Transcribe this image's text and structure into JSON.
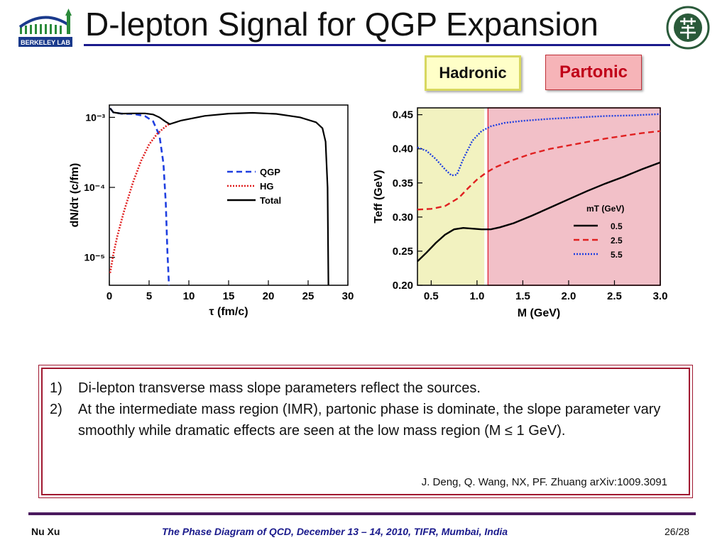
{
  "header": {
    "title": "D-lepton Signal for QGP Expansion",
    "left_logo_text": "BERKELEY LAB",
    "right_logo": "university-seal"
  },
  "tags": {
    "hadronic": "Hadronic",
    "partonic": "Partonic"
  },
  "colors": {
    "qgp": "#1f3fe0",
    "hg": "#e02020",
    "total": "#000000",
    "hadronic_bg": "#f2f2c0",
    "partonic_bg": "#f2c0c8",
    "accent": "#1a1a8c",
    "box_border": "#a01830"
  },
  "chart_data": [
    {
      "type": "line",
      "xlabel": "τ (fm/c)",
      "ylabel": "dN/dτ (c/fm)",
      "y_scale": "log",
      "xlim": [
        0,
        30
      ],
      "ylim": [
        4e-06,
        0.0015
      ],
      "x_ticks": [
        "0",
        "5",
        "10",
        "15",
        "20",
        "25",
        "30"
      ],
      "y_ticks": [
        "10⁻³",
        "10⁻⁴",
        "10⁻⁵"
      ],
      "legend": [
        "QGP",
        "HG",
        "Total"
      ],
      "legend_position": "center-right",
      "series": [
        {
          "name": "QGP",
          "x": [
            0.1,
            0.5,
            1.5,
            3,
            4.5,
            5.5,
            6.3,
            6.8,
            7.1,
            7.3,
            7.5
          ],
          "y": [
            0.00135,
            0.00118,
            0.00113,
            0.00112,
            0.00104,
            0.00088,
            0.00055,
            0.00022,
            6e-05,
            1.2e-05,
            4e-06
          ]
        },
        {
          "name": "HG",
          "x": [
            0.1,
            0.5,
            1.0,
            1.8,
            3.0,
            4.0,
            5.0,
            6.0,
            7.0,
            7.5
          ],
          "y": [
            6e-06,
            1.1e-05,
            2e-05,
            4.4e-05,
            0.00012,
            0.00024,
            0.00041,
            0.00058,
            0.00073,
            0.0008
          ]
        },
        {
          "name": "Total",
          "x": [
            0.1,
            0.5,
            1.5,
            3,
            4.5,
            5.5,
            6.3,
            7.0,
            7.6,
            9,
            12,
            15,
            18,
            21,
            24,
            26,
            26.8,
            27.2,
            27.45,
            27.55
          ],
          "y": [
            0.00135,
            0.00118,
            0.00113,
            0.00114,
            0.00114,
            0.0011,
            0.001,
            0.00088,
            0.0008,
            0.0009,
            0.00105,
            0.00113,
            0.00116,
            0.00112,
            0.001,
            0.00085,
            0.0007,
            0.00045,
            0.0001,
            4e-06
          ]
        }
      ]
    },
    {
      "type": "line",
      "xlabel": "M (GeV)",
      "ylabel": "Teff (GeV)",
      "xlim": [
        0.35,
        3.0
      ],
      "ylim": [
        0.2,
        0.46
      ],
      "x_ticks": [
        "0.5",
        "1.0",
        "1.5",
        "2.0",
        "2.5",
        "3.0"
      ],
      "y_ticks": [
        "0.20",
        "0.25",
        "0.30",
        "0.35",
        "0.40",
        "0.45"
      ],
      "legend_title": "mT (GeV)",
      "legend": [
        "0.5",
        "2.5",
        "5.5"
      ],
      "legend_position": "bottom-right",
      "regions": [
        {
          "label": "Hadronic",
          "x": [
            0.35,
            1.08
          ]
        },
        {
          "label": "Partonic",
          "x": [
            1.12,
            3.0
          ]
        }
      ],
      "series": [
        {
          "name": "0.5",
          "x": [
            0.35,
            0.45,
            0.55,
            0.65,
            0.75,
            0.85,
            0.95,
            1.05,
            1.15,
            1.25,
            1.4,
            1.6,
            1.8,
            2.0,
            2.2,
            2.4,
            2.6,
            2.8,
            3.0
          ],
          "y": [
            0.235,
            0.248,
            0.262,
            0.274,
            0.282,
            0.284,
            0.283,
            0.282,
            0.282,
            0.285,
            0.291,
            0.302,
            0.314,
            0.326,
            0.338,
            0.349,
            0.359,
            0.37,
            0.38
          ]
        },
        {
          "name": "2.5",
          "x": [
            0.35,
            0.5,
            0.65,
            0.8,
            0.9,
            1.0,
            1.1,
            1.2,
            1.4,
            1.6,
            1.8,
            2.0,
            2.2,
            2.4,
            2.6,
            2.8,
            3.0
          ],
          "y": [
            0.311,
            0.312,
            0.316,
            0.328,
            0.342,
            0.355,
            0.365,
            0.373,
            0.384,
            0.393,
            0.4,
            0.405,
            0.41,
            0.415,
            0.419,
            0.423,
            0.426
          ]
        },
        {
          "name": "5.5",
          "x": [
            0.35,
            0.45,
            0.55,
            0.65,
            0.72,
            0.78,
            0.85,
            0.95,
            1.05,
            1.15,
            1.3,
            1.5,
            1.8,
            2.1,
            2.4,
            2.7,
            3.0
          ],
          "y": [
            0.402,
            0.397,
            0.385,
            0.37,
            0.361,
            0.362,
            0.385,
            0.412,
            0.426,
            0.433,
            0.438,
            0.441,
            0.444,
            0.446,
            0.448,
            0.449,
            0.451
          ]
        }
      ]
    }
  ],
  "notes": {
    "items": [
      {
        "num": "1)",
        "text": "Di-lepton transverse mass slope parameters reflect the sources."
      },
      {
        "num": "2)",
        "text": "At the intermediate mass region (IMR), partonic phase is dominate, the slope parameter vary smoothly while dramatic effects are seen at the low mass region (M ≤ 1 GeV)."
      }
    ],
    "citation": "J. Deng, Q. Wang, NX, PF. Zhuang arXiv:1009.3091"
  },
  "footer": {
    "author": "Nu Xu",
    "conference": "The Phase Diagram of QCD, December 13 – 14, 2010, TIFR, Mumbai, India",
    "page": "26/28"
  }
}
